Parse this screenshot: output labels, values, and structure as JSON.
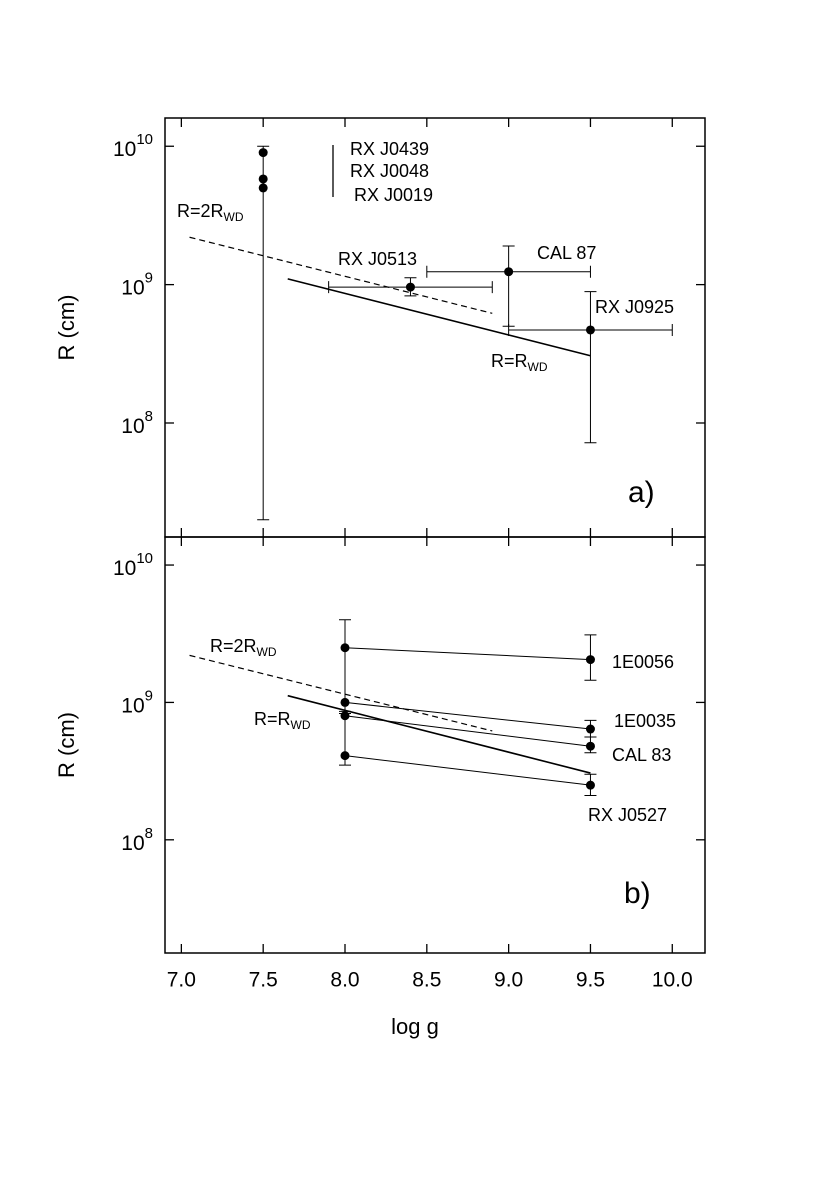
{
  "chart_data": [
    {
      "type": "scatter",
      "panel": "a)",
      "ylabel": "R (cm)",
      "log_y": true,
      "xlim": [
        6.9,
        10.2
      ],
      "xticks": [
        7,
        7.5,
        8,
        8.5,
        9,
        9.5,
        10
      ],
      "ylim": [
        15000000,
        16000000000
      ],
      "yticks": [
        {
          "value": 100000000,
          "label": "10",
          "sup": "8"
        },
        {
          "value": 1000000000,
          "label": "10",
          "sup": "9"
        },
        {
          "value": 10000000000,
          "label": "10",
          "sup": "10"
        }
      ],
      "series": [
        {
          "name": "RX J0439",
          "x": [
            7.5
          ],
          "values": [
            9000000000
          ],
          "yerr_low": [
            null
          ],
          "yerr_high": [
            null
          ],
          "xerr_low": [
            null
          ],
          "xerr_high": [
            null
          ]
        },
        {
          "name": "RX J0048",
          "x": [
            7.5
          ],
          "values": [
            5800000000
          ],
          "yerr_low": [
            null
          ],
          "yerr_high": [
            null
          ],
          "xerr_low": [
            null
          ],
          "xerr_high": [
            null
          ]
        },
        {
          "name": "RX J0019",
          "x": [
            7.5
          ],
          "values": [
            5000000000
          ],
          "yerr_low": [
            20000000
          ],
          "yerr_high": [
            10000000000
          ],
          "xerr_low": [
            null
          ],
          "xerr_high": [
            null
          ]
        },
        {
          "name": "RX J0513",
          "x": [
            8.4
          ],
          "values": [
            960000000
          ],
          "yerr_low": [
            830000000
          ],
          "yerr_high": [
            1120000000
          ],
          "xerr_low": [
            7.9
          ],
          "xerr_high": [
            8.9
          ]
        },
        {
          "name": "CAL 87",
          "x": [
            9.0
          ],
          "values": [
            1240000000
          ],
          "yerr_low": [
            500000000
          ],
          "yerr_high": [
            1900000000
          ],
          "xerr_low": [
            8.5
          ],
          "xerr_high": [
            9.5
          ]
        },
        {
          "name": "RX J0925",
          "x": [
            9.5
          ],
          "values": [
            470000000
          ],
          "yerr_low": [
            72000000
          ],
          "yerr_high": [
            890000000
          ],
          "xerr_low": [
            9.0
          ],
          "xerr_high": [
            10.0
          ]
        }
      ],
      "lines": [
        {
          "label": {
            "text": "R=2R",
            "sub": "WD"
          },
          "style": "dashed",
          "x": [
            7.05,
            8.9
          ],
          "values": [
            2200000000,
            620000000
          ]
        },
        {
          "label": {
            "text": "R=R",
            "sub": "WD"
          },
          "style": "solid",
          "x": [
            7.65,
            9.5
          ],
          "values": [
            1100000000,
            306000000
          ]
        }
      ]
    },
    {
      "type": "scatter",
      "panel": "b)",
      "ylabel": "R (cm)",
      "xlabel": "log g",
      "log_y": true,
      "xlim": [
        6.9,
        10.2
      ],
      "xticks": [
        {
          "value": 7,
          "label": "7.0"
        },
        7.5,
        {
          "value": 8,
          "label": "8.0"
        },
        8.5,
        {
          "value": 9,
          "label": "9.0"
        },
        9.5,
        {
          "value": 10,
          "label": "10.0"
        }
      ],
      "ylim": [
        15000000,
        16000000000
      ],
      "yticks": [
        {
          "value": 100000000,
          "label": "10",
          "sup": "8"
        },
        {
          "value": 1000000000,
          "label": "10",
          "sup": "9"
        },
        {
          "value": 10000000000,
          "label": "10",
          "sup": "10"
        }
      ],
      "series": [
        {
          "name": "1E0056",
          "x": [
            8.0,
            9.5
          ],
          "values": [
            2500000000,
            2050000000
          ],
          "yerr_low": [
            860000000,
            1450000000
          ],
          "yerr_high": [
            4000000000,
            3100000000
          ],
          "xerr_low": [
            null,
            null
          ],
          "xerr_high": [
            null,
            null
          ]
        },
        {
          "name": "1E0035",
          "x": [
            8.0,
            9.5
          ],
          "values": [
            1000000000,
            640000000
          ],
          "yerr_low": [
            null,
            560000000
          ],
          "yerr_high": [
            null,
            740000000
          ],
          "xerr_low": [
            null,
            null
          ],
          "xerr_high": [
            null,
            null
          ]
        },
        {
          "name": "CAL 83",
          "x": [
            8.0,
            9.5
          ],
          "values": [
            800000000,
            480000000
          ],
          "yerr_low": [
            null,
            430000000
          ],
          "yerr_high": [
            null,
            560000000
          ],
          "xerr_low": [
            null,
            null
          ],
          "xerr_high": [
            null,
            null
          ]
        },
        {
          "name": "RX J0527",
          "x": [
            8.0,
            9.5
          ],
          "values": [
            410000000,
            250000000
          ],
          "yerr_low": [
            350000000,
            210000000
          ],
          "yerr_high": [
            830000000,
            300000000
          ],
          "xerr_low": [
            null,
            null
          ],
          "xerr_high": [
            null,
            null
          ]
        }
      ],
      "lines": [
        {
          "label": {
            "text": "R=2R",
            "sub": "WD"
          },
          "style": "dashed",
          "x": [
            7.05,
            8.9
          ],
          "values": [
            2200000000,
            620000000
          ]
        },
        {
          "label": {
            "text": "R=R",
            "sub": "WD"
          },
          "style": "solid",
          "x": [
            7.65,
            9.5
          ],
          "values": [
            1120000000,
            306000000
          ]
        }
      ]
    }
  ]
}
